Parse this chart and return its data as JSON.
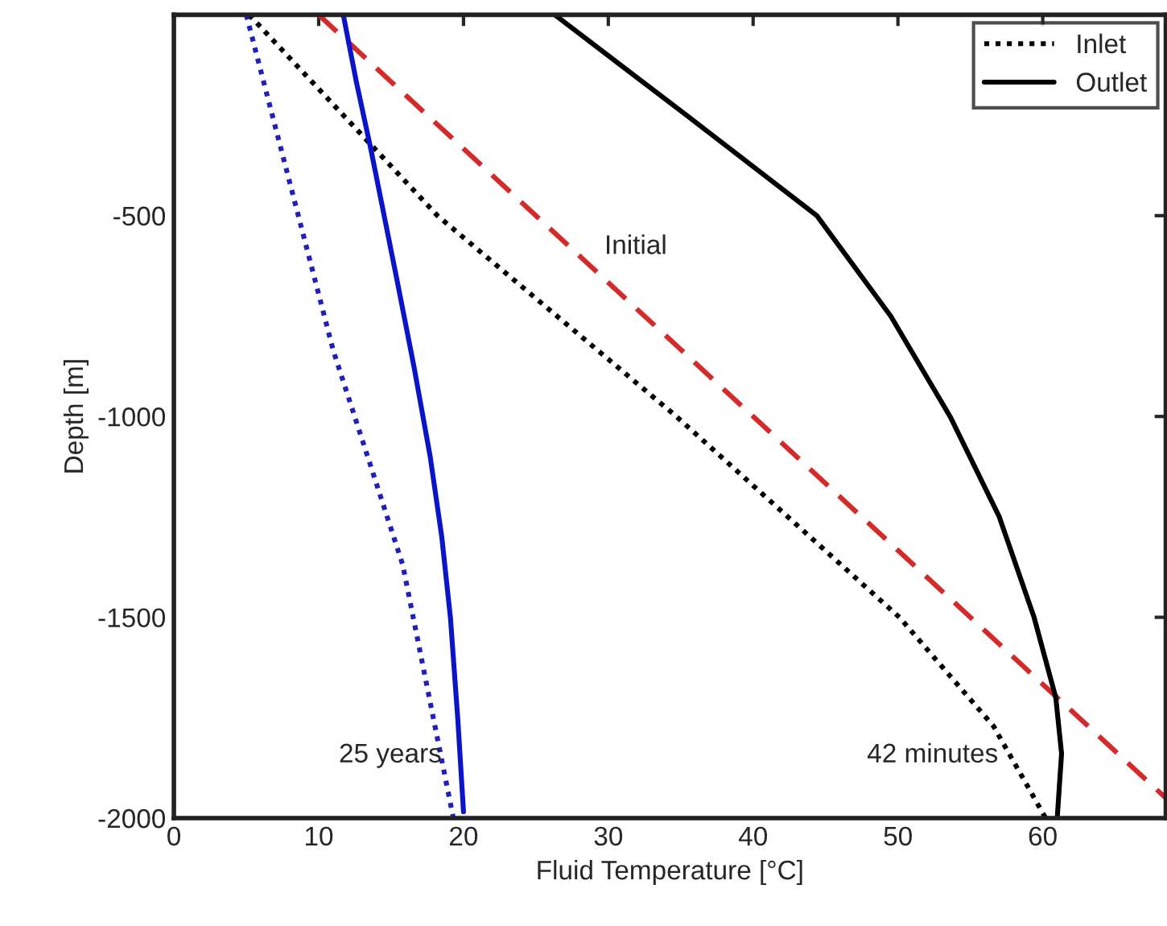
{
  "chart_data": {
    "type": "line",
    "xlabel": "Fluid Temperature [°C]",
    "ylabel": "Depth [m]",
    "xlim": [
      0,
      68.5
    ],
    "ylim": [
      -2000,
      0
    ],
    "xticks": [
      0,
      10,
      20,
      30,
      40,
      50,
      60
    ],
    "yticks": [
      -2000,
      -1500,
      -1000,
      -500
    ],
    "grid": false,
    "legend": "top right",
    "marker": "none",
    "series": [
      {
        "x": [
          10,
          68.5
        ],
        "values": [
          0,
          -1950
        ],
        "color": "#d42a2a",
        "line_style": "dashed"
      },
      {
        "name": "Inlet",
        "x": [
          5.2,
          18.2,
          34.7,
          50.1,
          56.6,
          60.2
        ],
        "values": [
          0,
          -500,
          -1000,
          -1500,
          -1771,
          -2000
        ],
        "color": "#000000",
        "line_style": "dotted"
      },
      {
        "name": "Outlet",
        "x": [
          26.3,
          35.4,
          44.4,
          49.5,
          53.6,
          57,
          59.4,
          60.9,
          61.3,
          61
        ],
        "values": [
          0,
          -250,
          -500,
          -750,
          -1000,
          -1250,
          -1500,
          -1700,
          -1839,
          -2000
        ],
        "color": "#000000",
        "line_style": "solid"
      },
      {
        "x": [
          5.0,
          11.0,
          15.8,
          19.3
        ],
        "values": [
          0,
          -835,
          -1369,
          -2000
        ],
        "color": "#1f1fbf",
        "line_style": "dotted"
      },
      {
        "x": [
          11.7,
          12.6,
          13.6,
          15.4,
          16.6,
          17.7,
          18.5,
          19.1,
          19.6,
          20.0
        ],
        "values": [
          0,
          -167,
          -334,
          -659,
          -880,
          -1100,
          -1300,
          -1502,
          -1750,
          -1984
        ],
        "color": "#0a14c8",
        "line_style": "solid"
      }
    ],
    "annotations": [
      "Initial",
      "25 years",
      "42 minutes"
    ]
  }
}
